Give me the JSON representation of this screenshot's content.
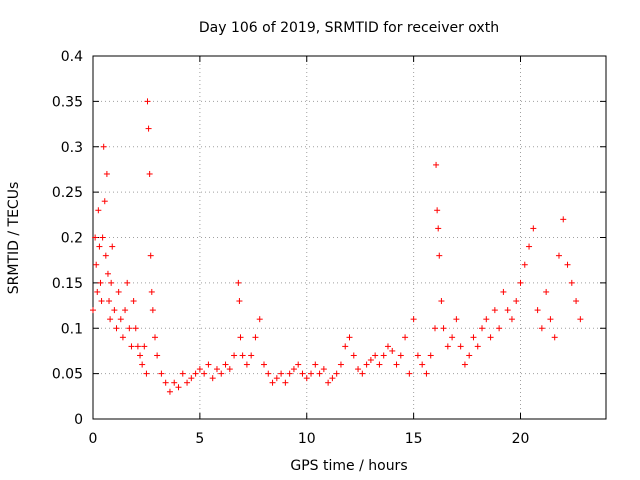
{
  "chart_data": {
    "type": "scatter",
    "title": "Day 106 of 2019, SRMTID for receiver oxth",
    "xlabel": "GPS time / hours",
    "ylabel": "SRMTID / TECUs",
    "xlim": [
      0,
      24
    ],
    "ylim": [
      0,
      0.4
    ],
    "x_ticks": [
      0,
      5,
      10,
      15,
      20
    ],
    "x_tick_labels": [
      "0",
      "5",
      "10",
      "15",
      "20"
    ],
    "y_ticks": [
      0,
      0.05,
      0.1,
      0.15,
      0.2,
      0.25,
      0.3,
      0.35,
      0.4
    ],
    "y_tick_labels": [
      "0",
      "0.05",
      "0.1",
      "0.15",
      "0.2",
      "0.25",
      "0.3",
      "0.35",
      "0.4"
    ],
    "grid": true,
    "series": [
      {
        "name": "SRMTID",
        "marker": "+",
        "color": "#ff0000",
        "points": [
          [
            0.0,
            0.12
          ],
          [
            0.1,
            0.2
          ],
          [
            0.15,
            0.17
          ],
          [
            0.2,
            0.14
          ],
          [
            0.25,
            0.23
          ],
          [
            0.3,
            0.19
          ],
          [
            0.35,
            0.15
          ],
          [
            0.4,
            0.13
          ],
          [
            0.45,
            0.2
          ],
          [
            0.5,
            0.3
          ],
          [
            0.55,
            0.24
          ],
          [
            0.6,
            0.18
          ],
          [
            0.65,
            0.27
          ],
          [
            0.7,
            0.16
          ],
          [
            0.75,
            0.13
          ],
          [
            0.8,
            0.11
          ],
          [
            0.85,
            0.15
          ],
          [
            0.9,
            0.19
          ],
          [
            1.0,
            0.12
          ],
          [
            1.1,
            0.1
          ],
          [
            1.2,
            0.14
          ],
          [
            1.3,
            0.11
          ],
          [
            1.4,
            0.09
          ],
          [
            1.5,
            0.12
          ],
          [
            1.6,
            0.15
          ],
          [
            1.7,
            0.1
          ],
          [
            1.8,
            0.08
          ],
          [
            1.9,
            0.13
          ],
          [
            2.0,
            0.1
          ],
          [
            2.1,
            0.08
          ],
          [
            2.2,
            0.07
          ],
          [
            2.3,
            0.06
          ],
          [
            2.4,
            0.08
          ],
          [
            2.5,
            0.05
          ],
          [
            2.55,
            0.35
          ],
          [
            2.6,
            0.32
          ],
          [
            2.65,
            0.27
          ],
          [
            2.7,
            0.18
          ],
          [
            2.75,
            0.14
          ],
          [
            2.8,
            0.12
          ],
          [
            2.9,
            0.09
          ],
          [
            3.0,
            0.07
          ],
          [
            3.2,
            0.05
          ],
          [
            3.4,
            0.04
          ],
          [
            3.6,
            0.03
          ],
          [
            3.8,
            0.04
          ],
          [
            4.0,
            0.035
          ],
          [
            4.2,
            0.05
          ],
          [
            4.4,
            0.04
          ],
          [
            4.6,
            0.045
          ],
          [
            4.8,
            0.05
          ],
          [
            5.0,
            0.055
          ],
          [
            5.2,
            0.05
          ],
          [
            5.4,
            0.06
          ],
          [
            5.6,
            0.045
          ],
          [
            5.8,
            0.055
          ],
          [
            6.0,
            0.05
          ],
          [
            6.2,
            0.06
          ],
          [
            6.4,
            0.055
          ],
          [
            6.6,
            0.07
          ],
          [
            6.8,
            0.15
          ],
          [
            6.85,
            0.13
          ],
          [
            6.9,
            0.09
          ],
          [
            7.0,
            0.07
          ],
          [
            7.2,
            0.06
          ],
          [
            7.4,
            0.07
          ],
          [
            7.6,
            0.09
          ],
          [
            7.8,
            0.11
          ],
          [
            8.0,
            0.06
          ],
          [
            8.2,
            0.05
          ],
          [
            8.4,
            0.04
          ],
          [
            8.6,
            0.045
          ],
          [
            8.8,
            0.05
          ],
          [
            9.0,
            0.04
          ],
          [
            9.2,
            0.05
          ],
          [
            9.4,
            0.055
          ],
          [
            9.6,
            0.06
          ],
          [
            9.8,
            0.05
          ],
          [
            10.0,
            0.045
          ],
          [
            10.2,
            0.05
          ],
          [
            10.4,
            0.06
          ],
          [
            10.6,
            0.05
          ],
          [
            10.8,
            0.055
          ],
          [
            11.0,
            0.04
          ],
          [
            11.2,
            0.045
          ],
          [
            11.4,
            0.05
          ],
          [
            11.6,
            0.06
          ],
          [
            11.8,
            0.08
          ],
          [
            12.0,
            0.09
          ],
          [
            12.2,
            0.07
          ],
          [
            12.4,
            0.055
          ],
          [
            12.6,
            0.05
          ],
          [
            12.8,
            0.06
          ],
          [
            13.0,
            0.065
          ],
          [
            13.2,
            0.07
          ],
          [
            13.4,
            0.06
          ],
          [
            13.6,
            0.07
          ],
          [
            13.8,
            0.08
          ],
          [
            14.0,
            0.075
          ],
          [
            14.2,
            0.06
          ],
          [
            14.4,
            0.07
          ],
          [
            14.6,
            0.09
          ],
          [
            14.8,
            0.05
          ],
          [
            15.0,
            0.11
          ],
          [
            15.2,
            0.07
          ],
          [
            15.4,
            0.06
          ],
          [
            15.6,
            0.05
          ],
          [
            15.8,
            0.07
          ],
          [
            16.0,
            0.1
          ],
          [
            16.05,
            0.28
          ],
          [
            16.1,
            0.23
          ],
          [
            16.15,
            0.21
          ],
          [
            16.2,
            0.18
          ],
          [
            16.3,
            0.13
          ],
          [
            16.4,
            0.1
          ],
          [
            16.6,
            0.08
          ],
          [
            16.8,
            0.09
          ],
          [
            17.0,
            0.11
          ],
          [
            17.2,
            0.08
          ],
          [
            17.4,
            0.06
          ],
          [
            17.6,
            0.07
          ],
          [
            17.8,
            0.09
          ],
          [
            18.0,
            0.08
          ],
          [
            18.2,
            0.1
          ],
          [
            18.4,
            0.11
          ],
          [
            18.6,
            0.09
          ],
          [
            18.8,
            0.12
          ],
          [
            19.0,
            0.1
          ],
          [
            19.2,
            0.14
          ],
          [
            19.4,
            0.12
          ],
          [
            19.6,
            0.11
          ],
          [
            19.8,
            0.13
          ],
          [
            20.0,
            0.15
          ],
          [
            20.2,
            0.17
          ],
          [
            20.4,
            0.19
          ],
          [
            20.6,
            0.21
          ],
          [
            20.8,
            0.12
          ],
          [
            21.0,
            0.1
          ],
          [
            21.2,
            0.14
          ],
          [
            21.4,
            0.11
          ],
          [
            21.6,
            0.09
          ],
          [
            21.8,
            0.18
          ],
          [
            22.0,
            0.22
          ],
          [
            22.2,
            0.17
          ],
          [
            22.4,
            0.15
          ],
          [
            22.6,
            0.13
          ],
          [
            22.8,
            0.11
          ]
        ]
      }
    ]
  }
}
